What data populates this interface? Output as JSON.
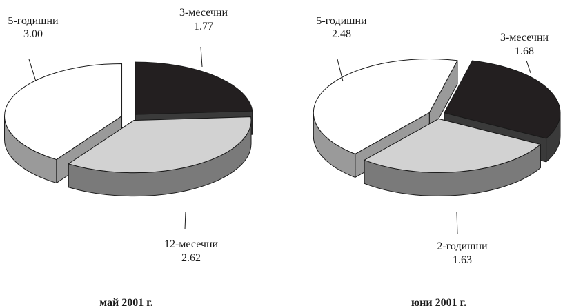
{
  "chart_data": [
    {
      "type": "pie",
      "title": "май 2001 г.",
      "slices": [
        {
          "name": "3-месечни",
          "value": 1.77,
          "value_label": "1.77",
          "color": "#231f20"
        },
        {
          "name": "12-месечни",
          "value": 2.62,
          "value_label": "2.62",
          "color": "#d2d2d2"
        },
        {
          "name": "5-годишни",
          "value": 3.0,
          "value_label": "3.00",
          "color": "#ffffff"
        }
      ]
    },
    {
      "type": "pie",
      "title": "юни 2001 г.",
      "slices": [
        {
          "name": "3-месечни",
          "value": 1.68,
          "value_label": "1.68",
          "color": "#231f20"
        },
        {
          "name": "2-годишни",
          "value": 1.63,
          "value_label": "1.63",
          "color": "#d2d2d2"
        },
        {
          "name": "5-годишни",
          "value": 2.48,
          "value_label": "2.48",
          "color": "#ffffff"
        }
      ]
    }
  ]
}
